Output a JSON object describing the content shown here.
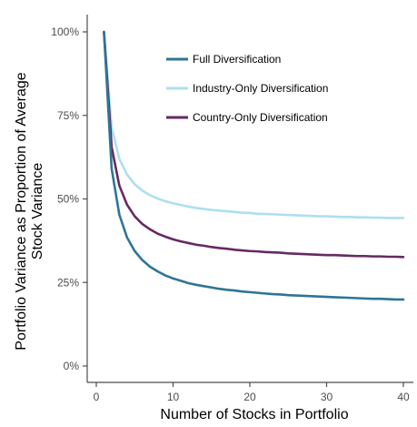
{
  "chart_data": {
    "type": "line",
    "title": "",
    "xlabel": "Number of Stocks in Portfolio",
    "ylabel_lines": [
      "Portfolio Variance as Proportion of Average",
      "Stock Variance"
    ],
    "xlim": [
      0,
      40
    ],
    "ylim": [
      0,
      100
    ],
    "x_ticks": [
      {
        "value": 0,
        "label": "0"
      },
      {
        "value": 10,
        "label": "10"
      },
      {
        "value": 20,
        "label": "20"
      },
      {
        "value": 30,
        "label": "30"
      },
      {
        "value": 40,
        "label": "40"
      }
    ],
    "y_ticks": [
      {
        "value": 0,
        "label": "0%"
      },
      {
        "value": 25,
        "label": "25%"
      },
      {
        "value": 50,
        "label": "50%"
      },
      {
        "value": 75,
        "label": "75%"
      },
      {
        "value": 100,
        "label": "100%"
      }
    ],
    "grid": false,
    "legend_position": "top-right",
    "x": [
      1,
      2,
      3,
      4,
      5,
      6,
      7,
      8,
      9,
      10,
      11,
      12,
      13,
      14,
      15,
      16,
      17,
      18,
      19,
      20,
      21,
      22,
      23,
      24,
      25,
      26,
      27,
      28,
      29,
      30,
      31,
      32,
      33,
      34,
      35,
      36,
      37,
      38,
      39,
      40
    ],
    "series": [
      {
        "name": "Full Diversification",
        "color": "#2e7596",
        "values": [
          100.0,
          59.0,
          45.3,
          38.5,
          34.4,
          31.7,
          29.7,
          28.3,
          27.1,
          26.2,
          25.5,
          24.8,
          24.3,
          23.9,
          23.5,
          23.1,
          22.8,
          22.6,
          22.3,
          22.1,
          21.9,
          21.7,
          21.5,
          21.4,
          21.2,
          21.1,
          21.0,
          20.9,
          20.8,
          20.7,
          20.6,
          20.5,
          20.4,
          20.3,
          20.2,
          20.1,
          20.1,
          20.0,
          19.9,
          19.9
        ]
      },
      {
        "name": "Industry-Only Diversification",
        "color": "#addff0",
        "values": [
          100.0,
          71.5,
          62.0,
          57.3,
          54.4,
          52.5,
          51.1,
          50.1,
          49.3,
          48.7,
          48.2,
          47.7,
          47.3,
          47.0,
          46.7,
          46.5,
          46.3,
          46.1,
          45.9,
          45.8,
          45.6,
          45.5,
          45.4,
          45.3,
          45.2,
          45.1,
          45.0,
          44.9,
          44.8,
          44.8,
          44.7,
          44.6,
          44.6,
          44.5,
          44.5,
          44.4,
          44.4,
          44.3,
          44.3,
          44.3
        ]
      },
      {
        "name": "Country-Only Diversification",
        "color": "#652a62",
        "values": [
          100.0,
          65.5,
          54.0,
          48.3,
          44.8,
          42.5,
          40.9,
          39.6,
          38.7,
          37.9,
          37.3,
          36.8,
          36.3,
          36.0,
          35.6,
          35.3,
          35.1,
          34.8,
          34.6,
          34.4,
          34.3,
          34.1,
          34.0,
          33.9,
          33.7,
          33.6,
          33.5,
          33.4,
          33.3,
          33.2,
          33.2,
          33.1,
          33.0,
          32.9,
          32.9,
          32.8,
          32.8,
          32.7,
          32.7,
          32.6
        ]
      }
    ]
  }
}
